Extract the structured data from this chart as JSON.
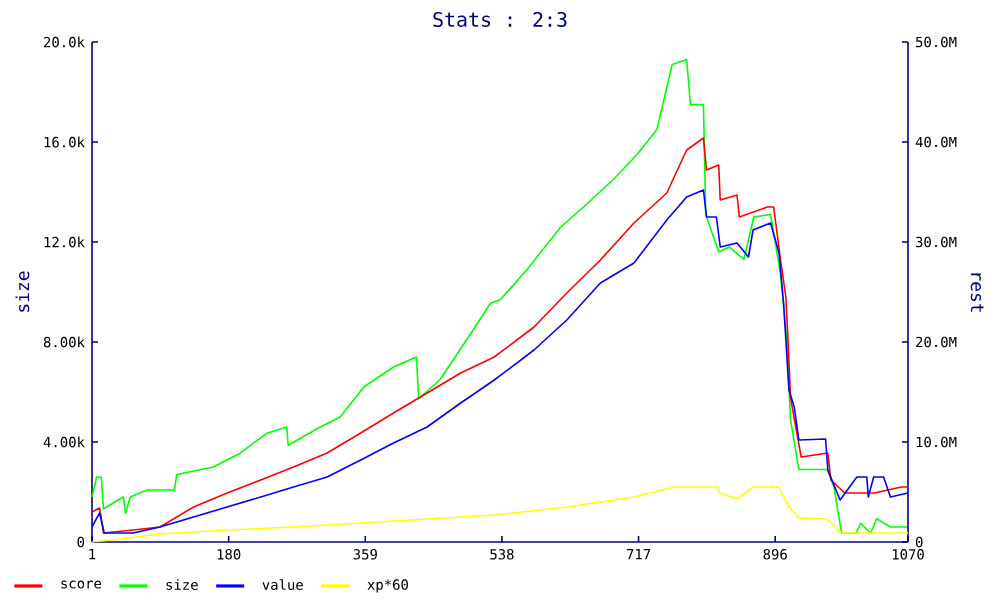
{
  "chart_data": {
    "type": "line",
    "title": "Stats : 2:3",
    "ylabel": "size",
    "y2label": "rest",
    "xlim": [
      1,
      1070
    ],
    "xticks": [
      1,
      180,
      359,
      538,
      717,
      896,
      1070
    ],
    "ylim": [
      0,
      20
    ],
    "yticks": [
      0,
      {
        "value": 4,
        "label": "4.00k"
      },
      {
        "value": 8,
        "label": "8.00k"
      },
      {
        "value": 12,
        "label": "12.0k"
      },
      {
        "value": 16,
        "label": "16.0k"
      },
      {
        "value": 20,
        "label": "20.0k"
      }
    ],
    "y2lim": [
      0,
      50
    ],
    "y2ticks": [
      0,
      {
        "value": 10,
        "label": "10.0M"
      },
      {
        "value": 20,
        "label": "20.0M"
      },
      {
        "value": 30,
        "label": "30.0M"
      },
      {
        "value": 40,
        "label": "40.0M"
      },
      {
        "value": 50,
        "label": "50.0M"
      }
    ],
    "legend": "bottom left",
    "series": [
      {
        "name": "score",
        "color": "#ff0000",
        "axis": "y2",
        "x": [
          1,
          11,
          16,
          55,
          90,
          134,
          178,
          222,
          265,
          309,
          353,
          396,
          440,
          484,
          528,
          580,
          623,
          667,
          711,
          754,
          780,
          802,
          806,
          822,
          824,
          846,
          849,
          886,
          894,
          903,
          910,
          914,
          916,
          930,
          965,
          969,
          987,
          1026,
          1061,
          1070
        ],
        "values": [
          3.0,
          3.4,
          0.9,
          1.2,
          1.5,
          3.5,
          4.9,
          6.2,
          7.5,
          8.9,
          10.9,
          12.9,
          14.9,
          16.9,
          18.5,
          21.5,
          24.9,
          28.2,
          31.9,
          34.9,
          39.2,
          40.4,
          37.2,
          37.7,
          34.2,
          34.7,
          32.5,
          33.5,
          33.5,
          28.2,
          24.5,
          18.2,
          14.5,
          8.5,
          8.9,
          6.2,
          4.9,
          4.9,
          5.5,
          5.5
        ]
      },
      {
        "name": "size",
        "color": "#00ff00",
        "axis": "y",
        "x": [
          1,
          7,
          13,
          16,
          42,
          45,
          51,
          73,
          109,
          112,
          160,
          195,
          230,
          256,
          258,
          300,
          326,
          357,
          396,
          426,
          429,
          457,
          492,
          523,
          536,
          571,
          615,
          645,
          684,
          715,
          741,
          761,
          780,
          785,
          802,
          805,
          822,
          836,
          855,
          868,
          890,
          903,
          912,
          916,
          927,
          964,
          973,
          983,
          1002,
          1008,
          1021,
          1029,
          1047,
          1070
        ],
        "values": [
          1.8,
          2.6,
          2.6,
          1.33,
          1.8,
          1.15,
          1.8,
          2.08,
          2.08,
          2.7,
          3.0,
          3.55,
          4.35,
          4.6,
          3.87,
          4.6,
          5.0,
          6.2,
          7.0,
          7.4,
          5.73,
          6.5,
          8.1,
          9.55,
          9.7,
          10.9,
          12.6,
          13.4,
          14.5,
          15.5,
          16.5,
          19.1,
          19.3,
          17.5,
          17.5,
          13.1,
          11.6,
          11.8,
          11.3,
          13.0,
          13.1,
          10.7,
          7.8,
          4.9,
          2.9,
          2.9,
          2.2,
          0.35,
          0.35,
          0.75,
          0.35,
          0.93,
          0.6,
          0.6
        ]
      },
      {
        "name": "value",
        "color": "#0000ff",
        "axis": "y2",
        "x": [
          1,
          11,
          17,
          55,
          90,
          134,
          178,
          222,
          265,
          309,
          353,
          396,
          440,
          484,
          528,
          580,
          623,
          667,
          711,
          754,
          780,
          802,
          806,
          819,
          824,
          846,
          861,
          867,
          890,
          901,
          907,
          914,
          921,
          927,
          962,
          965,
          981,
          1003,
          1016,
          1018,
          1025,
          1038,
          1047,
          1070
        ],
        "values": [
          1.5,
          2.9,
          0.9,
          0.9,
          1.5,
          2.5,
          3.5,
          4.5,
          5.5,
          6.5,
          8.2,
          9.9,
          11.5,
          13.9,
          16.2,
          19.2,
          22.2,
          25.9,
          27.9,
          32.2,
          34.5,
          35.2,
          32.5,
          32.5,
          29.5,
          29.9,
          28.5,
          31.2,
          31.9,
          28.9,
          23.9,
          15.2,
          13.5,
          10.2,
          10.3,
          7.2,
          4.2,
          6.5,
          6.5,
          4.5,
          6.5,
          6.5,
          4.5,
          4.9
        ]
      },
      {
        "name": "xp*60",
        "color": "#ffff00",
        "axis": "y2",
        "x": [
          1,
          38,
          90,
          178,
          265,
          353,
          440,
          528,
          623,
          711,
          763,
          820,
          824,
          846,
          867,
          901,
          914,
          927,
          964,
          983,
          1070
        ],
        "values": [
          0,
          0.3,
          0.8,
          1.2,
          1.5,
          1.9,
          2.3,
          2.7,
          3.5,
          4.5,
          5.5,
          5.5,
          4.9,
          4.3,
          5.5,
          5.5,
          3.5,
          2.4,
          2.3,
          0.9,
          0.9
        ]
      }
    ]
  }
}
